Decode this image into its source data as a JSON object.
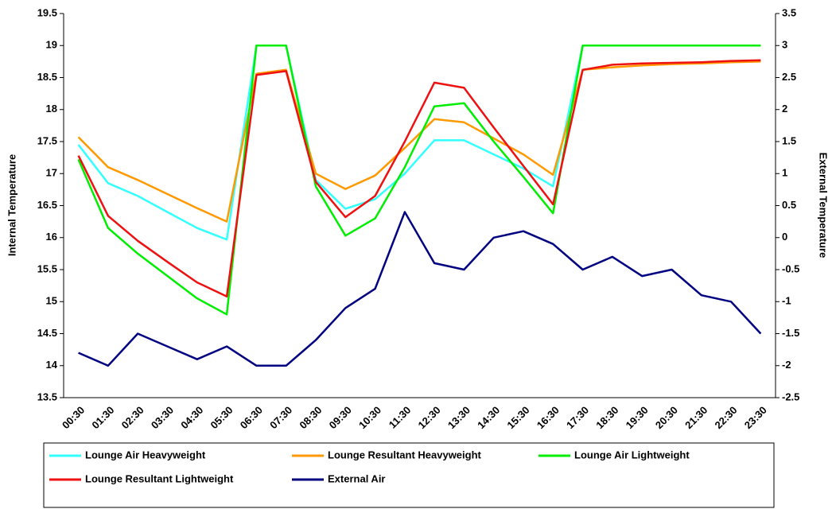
{
  "chart_data": {
    "type": "line",
    "ylabel": "Internal Temperature",
    "y2label": "External Temperature",
    "categories": [
      "00:30",
      "01:30",
      "02:30",
      "03:30",
      "04:30",
      "05:30",
      "06:30",
      "07:30",
      "08:30",
      "09:30",
      "10:30",
      "11:30",
      "12:30",
      "13:30",
      "14:30",
      "15:30",
      "16:30",
      "17:30",
      "18:30",
      "19:30",
      "20:30",
      "21:30",
      "22:30",
      "23:30"
    ],
    "series": [
      {
        "name": "Lounge Air Heavyweight",
        "color": "#33ffff",
        "values": [
          17.45,
          16.85,
          16.65,
          16.4,
          16.15,
          15.97,
          19,
          19,
          16.9,
          16.45,
          16.6,
          17.0,
          17.52,
          17.52,
          17.3,
          17.08,
          16.8,
          19,
          19,
          19,
          19,
          19,
          19,
          19
        ]
      },
      {
        "name": "Lounge Resultant Heavyweight",
        "color": "#ff9900",
        "values": [
          17.57,
          17.1,
          16.9,
          16.68,
          16.46,
          16.25,
          18.56,
          18.62,
          17.0,
          16.76,
          16.97,
          17.4,
          17.85,
          17.8,
          17.55,
          17.3,
          16.98,
          18.62,
          18.66,
          18.69,
          18.71,
          18.72,
          18.74,
          18.75
        ]
      },
      {
        "name": "Lounge Air Lightweight",
        "color": "#00ee00",
        "values": [
          17.22,
          16.15,
          15.75,
          15.4,
          15.05,
          14.8,
          19,
          19,
          16.8,
          16.03,
          16.3,
          17.1,
          18.05,
          18.1,
          17.5,
          16.95,
          16.38,
          19,
          19,
          19,
          19,
          19,
          19,
          19
        ]
      },
      {
        "name": "Lounge Resultant Lightweight",
        "color": "#ee1111",
        "values": [
          17.28,
          16.34,
          15.95,
          15.62,
          15.3,
          15.08,
          18.54,
          18.6,
          16.87,
          16.32,
          16.65,
          17.5,
          18.42,
          18.34,
          17.72,
          17.12,
          16.52,
          18.62,
          18.7,
          18.72,
          18.73,
          18.74,
          18.76,
          18.77
        ]
      },
      {
        "name": "External Air",
        "color": "#000080",
        "axis": "y2",
        "values": [
          -1.8,
          -2.0,
          -1.5,
          -1.7,
          -1.9,
          -1.7,
          -2.0,
          -2.0,
          -1.6,
          -1.1,
          -0.8,
          0.4,
          -0.4,
          -0.5,
          0.0,
          0.1,
          -0.1,
          -0.5,
          -0.3,
          -0.6,
          -0.5,
          -0.9,
          -1.0,
          -1.5
        ]
      }
    ],
    "ylim": [
      13.5,
      19.5
    ],
    "yticks": [
      13.5,
      14,
      14.5,
      15,
      15.5,
      16,
      16.5,
      17,
      17.5,
      18,
      18.5,
      19,
      19.5
    ],
    "y2lim": [
      -2.5,
      3.5
    ],
    "y2ticks": [
      -2.5,
      -2,
      -1.5,
      -1,
      -0.5,
      0,
      0.5,
      1,
      1.5,
      2,
      2.5,
      3,
      3.5
    ],
    "grid": false,
    "legend": "bottom"
  }
}
